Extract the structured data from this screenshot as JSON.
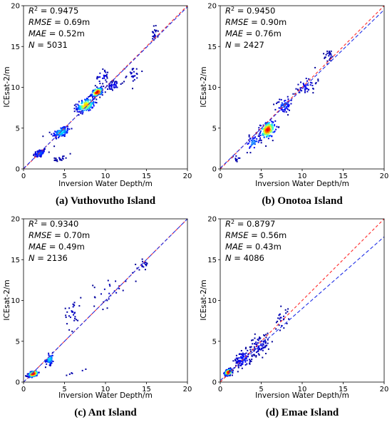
{
  "colors": {
    "fit": "#1f2fe6",
    "one_to_one": "#ff2a2a",
    "density_low": "#1515c8",
    "density_high": "#ff1a00",
    "axes": "#000000",
    "background": "#ffffff"
  },
  "chart_data": [
    {
      "type": "scatter",
      "panel": "a",
      "caption": "(a) Vuthovutho  Island",
      "xlabel": "Inversion Water Depth/m",
      "ylabel": "ICEsat-2/m",
      "xlim": [
        0,
        20
      ],
      "ylim": [
        0,
        20
      ],
      "xticks": [
        "0",
        "5",
        "10",
        "15",
        "20"
      ],
      "yticks": [
        "0",
        "5",
        "10",
        "15",
        "20"
      ],
      "stats": {
        "r2": "0.9475",
        "rmse": "0.69m",
        "mae": "0.52m",
        "n": "5031"
      },
      "fit_line": {
        "slope": 0.99,
        "intercept": 0.05
      },
      "reference_line": {
        "slope": 1,
        "intercept": 0
      },
      "density_colormap": "jet",
      "clusters": [
        {
          "x": 2.0,
          "y": 1.9,
          "sx": 0.8,
          "sy": 0.5,
          "n": 70,
          "d": 0.2
        },
        {
          "x": 4.6,
          "y": 4.5,
          "sx": 1.1,
          "sy": 0.7,
          "n": 110,
          "d": 0.35
        },
        {
          "x": 7.6,
          "y": 7.8,
          "sx": 1.1,
          "sy": 0.8,
          "n": 170,
          "d": 0.7
        },
        {
          "x": 9.0,
          "y": 9.4,
          "sx": 0.7,
          "sy": 0.5,
          "n": 110,
          "d": 0.95
        },
        {
          "x": 11.0,
          "y": 10.2,
          "sx": 1.0,
          "sy": 0.6,
          "n": 40,
          "d": 0.1
        },
        {
          "x": 13.3,
          "y": 11.5,
          "sx": 1.2,
          "sy": 1.2,
          "n": 25,
          "d": 0.05
        },
        {
          "x": 4.5,
          "y": 1.3,
          "sx": 0.8,
          "sy": 0.3,
          "n": 20,
          "d": 0.05
        },
        {
          "x": 16.0,
          "y": 16.5,
          "sx": 0.4,
          "sy": 1.0,
          "n": 20,
          "d": 0.05
        },
        {
          "x": 9.6,
          "y": 11.3,
          "sx": 0.8,
          "sy": 0.9,
          "n": 30,
          "d": 0.1
        }
      ]
    },
    {
      "type": "scatter",
      "panel": "b",
      "caption": "(b) Onotoa Island",
      "xlabel": "Inversion Water Depth/m",
      "ylabel": "ICEsat-2/m",
      "xlim": [
        0,
        20
      ],
      "ylim": [
        0,
        20
      ],
      "xticks": [
        "0",
        "5",
        "10",
        "15",
        "20"
      ],
      "yticks": [
        "0",
        "5",
        "10",
        "15",
        "20"
      ],
      "stats": {
        "r2": "0.9450",
        "rmse": "0.90m",
        "mae": "0.76m",
        "n": "2427"
      },
      "fit_line": {
        "slope": 0.97,
        "intercept": 0.1
      },
      "reference_line": {
        "slope": 1,
        "intercept": 0
      },
      "density_colormap": "jet",
      "clusters": [
        {
          "x": 5.8,
          "y": 4.8,
          "sx": 0.9,
          "sy": 1.0,
          "n": 170,
          "d": 0.9
        },
        {
          "x": 4.0,
          "y": 3.2,
          "sx": 0.9,
          "sy": 0.9,
          "n": 40,
          "d": 0.25
        },
        {
          "x": 7.8,
          "y": 7.8,
          "sx": 1.0,
          "sy": 1.0,
          "n": 60,
          "d": 0.2
        },
        {
          "x": 10.5,
          "y": 10.2,
          "sx": 1.3,
          "sy": 1.1,
          "n": 45,
          "d": 0.1
        },
        {
          "x": 13.3,
          "y": 13.8,
          "sx": 0.6,
          "sy": 0.8,
          "n": 25,
          "d": 0.05
        },
        {
          "x": 2.0,
          "y": 1.4,
          "sx": 0.7,
          "sy": 0.6,
          "n": 12,
          "d": 0.05
        }
      ]
    },
    {
      "type": "scatter",
      "panel": "c",
      "caption": "(c) Ant  Island",
      "xlabel": "Inversion Water Depth/m",
      "ylabel": "ICEsat-2/m",
      "xlim": [
        0,
        20
      ],
      "ylim": [
        0,
        20
      ],
      "xticks": [
        "0",
        "5",
        "10",
        "15",
        "20"
      ],
      "yticks": [
        "0",
        "5",
        "10",
        "15",
        "20"
      ],
      "stats": {
        "r2": "0.9340",
        "rmse": "0.70m",
        "mae": "0.49m",
        "n": "2136"
      },
      "fit_line": {
        "slope": 1.0,
        "intercept": 0.0
      },
      "reference_line": {
        "slope": 1,
        "intercept": 0
      },
      "density_colormap": "jet",
      "clusters": [
        {
          "x": 1.2,
          "y": 1.0,
          "sx": 0.6,
          "sy": 0.35,
          "n": 190,
          "d": 0.9
        },
        {
          "x": 3.2,
          "y": 2.8,
          "sx": 0.5,
          "sy": 0.7,
          "n": 60,
          "d": 0.35
        },
        {
          "x": 6.0,
          "y": 8.5,
          "sx": 1.0,
          "sy": 2.0,
          "n": 30,
          "d": 0.05
        },
        {
          "x": 10.5,
          "y": 11.0,
          "sx": 2.0,
          "sy": 1.8,
          "n": 25,
          "d": 0.05
        },
        {
          "x": 14.6,
          "y": 14.4,
          "sx": 0.8,
          "sy": 0.6,
          "n": 20,
          "d": 0.05
        },
        {
          "x": 6.5,
          "y": 1.2,
          "sx": 1.3,
          "sy": 0.2,
          "n": 6,
          "d": 0.05
        }
      ]
    },
    {
      "type": "scatter",
      "panel": "d",
      "caption": "(d) Emae Island",
      "xlabel": "Inversion Water Depth/m",
      "ylabel": "ICEsat-2/m",
      "xlim": [
        0,
        20
      ],
      "ylim": [
        0,
        20
      ],
      "xticks": [
        "0",
        "5",
        "10",
        "15",
        "20"
      ],
      "yticks": [
        "0",
        "5",
        "10",
        "15",
        "20"
      ],
      "stats": {
        "r2": "0.8797",
        "rmse": "0.56m",
        "mae": "0.43m",
        "n": "4086"
      },
      "fit_line": {
        "slope": 0.88,
        "intercept": 0.2
      },
      "reference_line": {
        "slope": 1,
        "intercept": 0
      },
      "density_colormap": "jet",
      "clusters": [
        {
          "x": 1.0,
          "y": 1.2,
          "sx": 0.45,
          "sy": 0.35,
          "n": 210,
          "d": 0.9
        },
        {
          "x": 2.8,
          "y": 2.8,
          "sx": 1.1,
          "sy": 1.0,
          "n": 110,
          "d": 0.15
        },
        {
          "x": 4.8,
          "y": 4.5,
          "sx": 1.2,
          "sy": 1.3,
          "n": 80,
          "d": 0.08
        },
        {
          "x": 7.5,
          "y": 8.0,
          "sx": 0.8,
          "sy": 1.5,
          "n": 25,
          "d": 0.05
        }
      ]
    }
  ]
}
